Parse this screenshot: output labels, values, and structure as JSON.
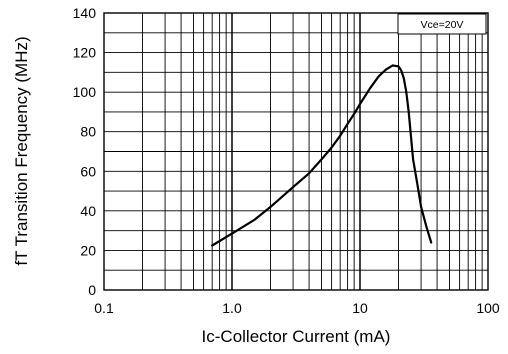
{
  "chart_data": {
    "type": "line",
    "title": "",
    "xlabel": "Ic-Collector Current  (mA)",
    "ylabel": "fT Transition Frequency (MHz)",
    "x_scale": "log",
    "xlim": [
      0.1,
      100
    ],
    "ylim": [
      0,
      140
    ],
    "x_tick_labels": [
      "0.1",
      "1.0",
      "10",
      "100"
    ],
    "y_tick_labels": [
      "0",
      "20",
      "40",
      "60",
      "80",
      "100",
      "120",
      "140"
    ],
    "grid": true,
    "legend": "Vce=20V",
    "legend_position": "top-right",
    "series": [
      {
        "x": [
          0.7,
          1.0,
          1.5,
          2.0,
          3.0,
          4.0,
          5.0,
          6.0,
          7.0,
          8.0,
          9.0,
          10.0,
          12.0,
          14.0,
          16.0,
          18.0,
          20.0,
          21.0,
          22.0,
          23.0,
          24.0,
          25.0,
          26.0,
          28.0,
          30.0,
          33.0,
          36.0
        ],
        "y": [
          22.5,
          28.5,
          35.5,
          42.0,
          52.0,
          59.0,
          66.0,
          72.0,
          78.0,
          84.0,
          89.0,
          94.0,
          102.0,
          108.0,
          111.5,
          113.5,
          113.0,
          111.0,
          107.0,
          100.0,
          90.0,
          78.0,
          66.0,
          54.0,
          42.0,
          32.0,
          24.0
        ]
      }
    ]
  }
}
